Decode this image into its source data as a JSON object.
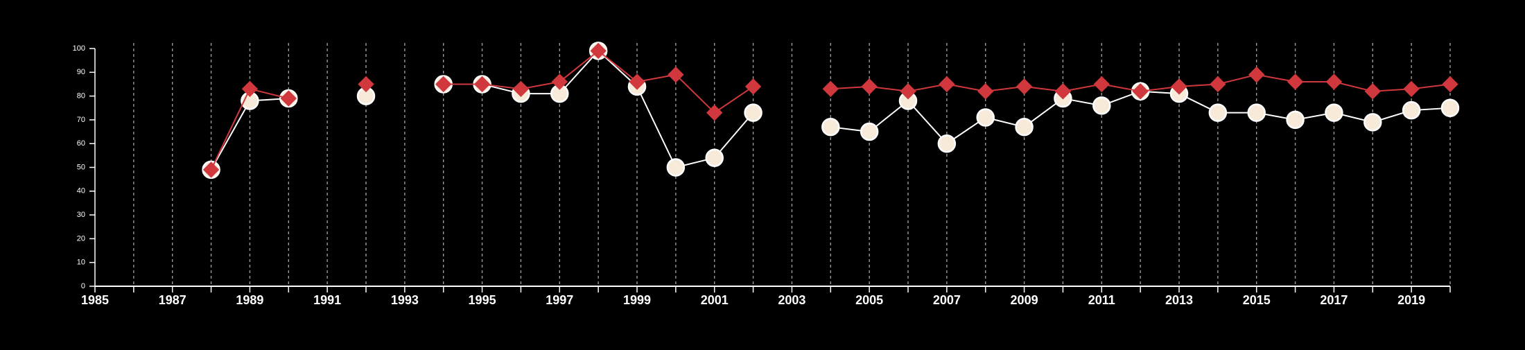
{
  "chart_data": {
    "type": "line",
    "title": "",
    "xlabel": "",
    "ylabel": "",
    "xlim": [
      1985,
      2020
    ],
    "ylim": [
      0,
      100
    ],
    "x_ticks": [
      1985,
      1987,
      1989,
      1991,
      1993,
      1995,
      1997,
      1999,
      2001,
      2003,
      2005,
      2007,
      2009,
      2011,
      2013,
      2015,
      2017,
      2019
    ],
    "y_ticks": [
      0,
      10,
      20,
      30,
      40,
      50,
      60,
      70,
      80,
      90,
      100
    ],
    "vertical_gridlines": "dashed, one per year",
    "legend": "none",
    "colors": {
      "background": "#000000",
      "axis": "#ffffff",
      "grid": "#9a9a9a"
    },
    "series": [
      {
        "marker": "circle",
        "color": "#ffffff",
        "fill": "#f7ead9",
        "segments": [
          [
            [
              1988,
              49
            ],
            [
              1989,
              78
            ],
            [
              1990,
              79
            ]
          ],
          [
            [
              1992,
              80
            ]
          ],
          [
            [
              1994,
              85
            ],
            [
              1995,
              85
            ],
            [
              1996,
              81
            ],
            [
              1997,
              81
            ],
            [
              1998,
              99
            ],
            [
              1999,
              84
            ],
            [
              2000,
              50
            ],
            [
              2001,
              54
            ],
            [
              2002,
              73
            ]
          ],
          [
            [
              2004,
              67
            ],
            [
              2005,
              65
            ],
            [
              2006,
              78
            ],
            [
              2007,
              60
            ],
            [
              2008,
              71
            ],
            [
              2009,
              67
            ],
            [
              2010,
              79
            ],
            [
              2011,
              76
            ],
            [
              2012,
              82
            ],
            [
              2013,
              81
            ],
            [
              2014,
              73
            ],
            [
              2015,
              73
            ],
            [
              2016,
              70
            ],
            [
              2017,
              73
            ],
            [
              2018,
              69
            ],
            [
              2019,
              74
            ],
            [
              2020,
              75
            ]
          ]
        ]
      },
      {
        "marker": "diamond",
        "color": "#d0383d",
        "fill": "#d0383d",
        "segments": [
          [
            [
              1988,
              49
            ],
            [
              1989,
              83
            ],
            [
              1990,
              79
            ]
          ],
          [
            [
              1992,
              85
            ]
          ],
          [
            [
              1994,
              85
            ],
            [
              1995,
              85
            ],
            [
              1996,
              83
            ],
            [
              1997,
              86
            ],
            [
              1998,
              99
            ],
            [
              1999,
              86
            ],
            [
              2000,
              89
            ],
            [
              2001,
              73
            ],
            [
              2002,
              84
            ]
          ],
          [
            [
              2004,
              83
            ],
            [
              2005,
              84
            ],
            [
              2006,
              82
            ],
            [
              2007,
              85
            ],
            [
              2008,
              82
            ],
            [
              2009,
              84
            ],
            [
              2010,
              82
            ],
            [
              2011,
              85
            ],
            [
              2012,
              82
            ],
            [
              2013,
              84
            ],
            [
              2014,
              85
            ],
            [
              2015,
              89
            ],
            [
              2016,
              86
            ],
            [
              2017,
              86
            ],
            [
              2018,
              82
            ],
            [
              2019,
              83
            ],
            [
              2020,
              85
            ]
          ]
        ]
      }
    ]
  }
}
